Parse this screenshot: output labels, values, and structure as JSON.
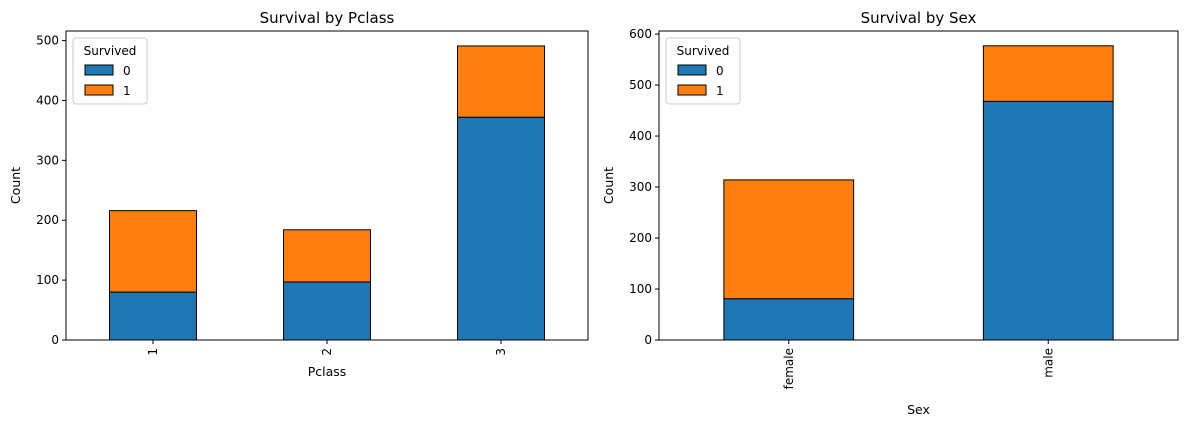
{
  "colors": {
    "survived_0": "#1f77b4",
    "survived_1": "#ff7f0e",
    "edge": "#000000"
  },
  "chart_data": [
    {
      "type": "bar",
      "stacked": true,
      "title": "Survival by Pclass",
      "xlabel": "Pclass",
      "ylabel": "Count",
      "categories": [
        "1",
        "2",
        "3"
      ],
      "series": [
        {
          "name": "0",
          "values": [
            80,
            97,
            372
          ]
        },
        {
          "name": "1",
          "values": [
            136,
            87,
            119
          ]
        }
      ],
      "ylim": [
        0,
        516
      ],
      "yticks": [
        0,
        100,
        200,
        300,
        400,
        500
      ],
      "legend": {
        "title": "Survived",
        "position": "top-left"
      },
      "grid": false,
      "xtick_rotation": "vertical"
    },
    {
      "type": "bar",
      "stacked": true,
      "title": "Survival by Sex",
      "xlabel": "Sex",
      "ylabel": "Count",
      "categories": [
        "female",
        "male"
      ],
      "series": [
        {
          "name": "0",
          "values": [
            81,
            468
          ]
        },
        {
          "name": "1",
          "values": [
            233,
            109
          ]
        }
      ],
      "ylim": [
        0,
        606
      ],
      "yticks": [
        0,
        100,
        200,
        300,
        400,
        500,
        600
      ],
      "legend": {
        "title": "Survived",
        "position": "top-left"
      },
      "grid": false,
      "xtick_rotation": "vertical"
    }
  ]
}
